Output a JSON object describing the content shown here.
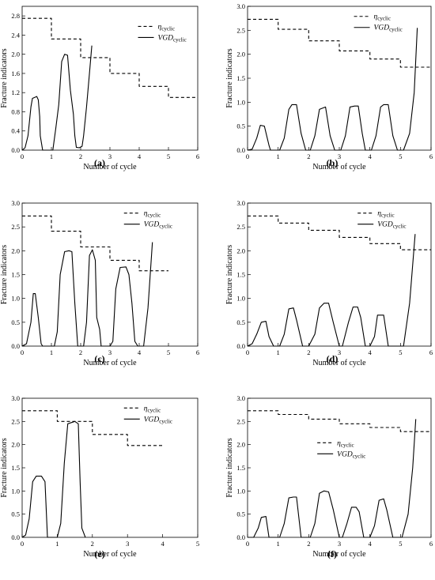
{
  "charts": [
    {
      "caption": "(a)",
      "xlabel": "Number of cycle",
      "ylabel": "Fracture indicators",
      "x_ticks": [
        "0",
        "1",
        "2",
        "3",
        "4",
        "5",
        "6"
      ],
      "y_ticks": [
        "0.0",
        "0.4",
        "0.8",
        "1.2",
        "1.6",
        "2.0",
        "2.4",
        "2.8"
      ],
      "legend_series_1": {
        "base": "η",
        "sub": "cyclic"
      },
      "legend_series_2": {
        "base": "VGD",
        "sub": "cyclic"
      }
    },
    {
      "caption": "(b)",
      "xlabel": "Number of cycle",
      "ylabel": "Fracture indicators",
      "x_ticks": [
        "0",
        "1",
        "2",
        "3",
        "4",
        "5",
        "6"
      ],
      "y_ticks": [
        "0.0",
        "0.5",
        "1.0",
        "1.5",
        "2.0",
        "2.5",
        "3.0"
      ],
      "legend_series_1": {
        "base": "η",
        "sub": "cyclic"
      },
      "legend_series_2": {
        "base": "VGD",
        "sub": "cyclic"
      }
    },
    {
      "caption": "(c)",
      "xlabel": "Number of cycle",
      "ylabel": "Fracture indicators",
      "x_ticks": [
        "0",
        "1",
        "2",
        "3",
        "4",
        "5",
        "6"
      ],
      "y_ticks": [
        "0.0",
        "0.5",
        "1.0",
        "1.5",
        "2.0",
        "2.5",
        "3.0"
      ],
      "legend_series_1": {
        "base": "η",
        "sub": "cyclic"
      },
      "legend_series_2": {
        "base": "VGD",
        "sub": "cyclic"
      }
    },
    {
      "caption": "(d)",
      "xlabel": "Number of cycle",
      "ylabel": "Fracture indicators",
      "x_ticks": [
        "0",
        "1",
        "2",
        "3",
        "4",
        "5",
        "6"
      ],
      "y_ticks": [
        "0.0",
        "0.5",
        "1.0",
        "1.5",
        "2.0",
        "2.5",
        "3.0"
      ],
      "legend_series_1": {
        "base": "η",
        "sub": "cyclic"
      },
      "legend_series_2": {
        "base": "VGD",
        "sub": "cyclic"
      }
    },
    {
      "caption": "(e)",
      "xlabel": "Number of cycle",
      "ylabel": "Fracture indicators",
      "x_ticks": [
        "0",
        "1",
        "2",
        "3",
        "4",
        "5"
      ],
      "y_ticks": [
        "0.0",
        "0.5",
        "1.0",
        "1.5",
        "2.0",
        "2.5",
        "3.0"
      ],
      "legend_series_1": {
        "base": "η",
        "sub": "cyclic"
      },
      "legend_series_2": {
        "base": "VGD",
        "sub": "cyclic"
      }
    },
    {
      "caption": "(f)",
      "xlabel": "Number of cycle",
      "ylabel": "Fracture indicators",
      "x_ticks": [
        "0",
        "1",
        "2",
        "3",
        "4",
        "5",
        "6"
      ],
      "y_ticks": [
        "0.0",
        "0.5",
        "1.0",
        "1.5",
        "2.0",
        "2.5",
        "3.0"
      ],
      "legend_series_1": {
        "base": "η",
        "sub": "cyclic"
      },
      "legend_series_2": {
        "base": "VGD",
        "sub": "cyclic"
      }
    }
  ],
  "chart_data": [
    {
      "type": "line",
      "xlim": [
        0,
        6
      ],
      "ylim": [
        0,
        3.0
      ],
      "grid": false,
      "legend_placement": "top-right",
      "series": [
        {
          "name": "ηcyclic",
          "style": "dashed",
          "x": [
            0,
            1,
            1,
            2,
            2,
            3,
            3,
            4,
            4,
            5,
            5,
            6
          ],
          "y": [
            2.75,
            2.75,
            2.32,
            2.32,
            1.93,
            1.93,
            1.6,
            1.6,
            1.33,
            1.33,
            1.1,
            1.1
          ]
        },
        {
          "name": "VGDcyclic",
          "style": "solid",
          "x": [
            0,
            0.1,
            0.2,
            0.3,
            0.35,
            0.5,
            0.55,
            0.6,
            0.62,
            0.7,
            0.72,
            0.8,
            0.9,
            1.0,
            1.05,
            1.15,
            1.25,
            1.35,
            1.45,
            1.55,
            1.65,
            1.75,
            1.8,
            1.85,
            1.95,
            2.05,
            2.1,
            2.2,
            2.3,
            2.38
          ],
          "y": [
            0.0,
            0.05,
            0.3,
            0.9,
            1.08,
            1.12,
            1.05,
            0.7,
            0.3,
            0.0,
            0.0,
            0.0,
            0.0,
            0.0,
            0.0,
            0.45,
            0.95,
            1.85,
            2.0,
            1.98,
            1.25,
            0.75,
            0.3,
            0.06,
            0.05,
            0.08,
            0.3,
            0.9,
            1.6,
            2.18
          ]
        }
      ]
    },
    {
      "type": "line",
      "xlim": [
        0,
        6
      ],
      "ylim": [
        0,
        3.0
      ],
      "grid": false,
      "legend_placement": "top-right",
      "series": [
        {
          "name": "ηcyclic",
          "style": "dashed",
          "x": [
            0,
            1,
            1,
            2,
            2,
            3,
            3,
            4,
            4,
            5,
            5,
            6
          ],
          "y": [
            2.73,
            2.73,
            2.52,
            2.52,
            2.28,
            2.28,
            2.07,
            2.07,
            1.9,
            1.9,
            1.73,
            1.73
          ]
        },
        {
          "name": "VGDcyclic",
          "style": "solid",
          "x": [
            0,
            0.15,
            0.3,
            0.42,
            0.55,
            0.7,
            0.75,
            0.9,
            1.05,
            1.2,
            1.35,
            1.45,
            1.6,
            1.75,
            1.9,
            2.05,
            2.2,
            2.35,
            2.55,
            2.7,
            2.85,
            2.95,
            3.05,
            3.2,
            3.35,
            3.5,
            3.62,
            3.75,
            3.85,
            3.95,
            4.05,
            4.2,
            4.35,
            4.45,
            4.6,
            4.75,
            4.9,
            5.1,
            5.3,
            5.45,
            5.55
          ],
          "y": [
            0.0,
            0.02,
            0.25,
            0.52,
            0.5,
            0.1,
            0.0,
            0.0,
            0.0,
            0.25,
            0.85,
            0.95,
            0.95,
            0.35,
            0.0,
            0.0,
            0.3,
            0.85,
            0.9,
            0.3,
            0.0,
            0.0,
            0.0,
            0.3,
            0.9,
            0.92,
            0.92,
            0.35,
            0.0,
            0.0,
            0.0,
            0.3,
            0.9,
            0.95,
            0.95,
            0.3,
            0.0,
            0.0,
            0.35,
            1.2,
            2.55
          ]
        }
      ]
    },
    {
      "type": "line",
      "xlim": [
        0,
        6
      ],
      "ylim": [
        0,
        3.0
      ],
      "grid": false,
      "legend_placement": "top-right",
      "series": [
        {
          "name": "ηcyclic",
          "style": "dashed",
          "x": [
            0,
            1,
            1,
            2,
            2,
            3,
            3,
            4,
            4,
            5
          ],
          "y": [
            2.73,
            2.73,
            2.41,
            2.41,
            2.08,
            2.08,
            1.8,
            1.8,
            1.58,
            1.58
          ]
        },
        {
          "name": "VGDcyclic",
          "style": "solid",
          "x": [
            0,
            0.15,
            0.3,
            0.38,
            0.45,
            0.55,
            0.65,
            0.7,
            0.8,
            0.9,
            1.0,
            1.1,
            1.2,
            1.3,
            1.45,
            1.6,
            1.7,
            1.8,
            1.9,
            2.0,
            2.1,
            2.2,
            2.3,
            2.4,
            2.5,
            2.55,
            2.65,
            2.7,
            2.85,
            3.0,
            3.1,
            3.2,
            3.35,
            3.55,
            3.65,
            3.75,
            3.85,
            3.95,
            4.05,
            4.15,
            4.3,
            4.45
          ],
          "y": [
            0.0,
            0.05,
            0.5,
            1.1,
            1.1,
            0.6,
            0.05,
            0.0,
            0.0,
            0.0,
            0.0,
            0.0,
            0.3,
            1.5,
            1.98,
            2.0,
            1.98,
            0.9,
            0.0,
            0.0,
            0.0,
            0.5,
            1.9,
            2.02,
            1.8,
            0.6,
            0.35,
            0.0,
            0.0,
            0.0,
            0.1,
            1.2,
            1.65,
            1.66,
            1.5,
            0.9,
            0.1,
            0.0,
            0.0,
            0.0,
            0.8,
            2.18
          ]
        }
      ]
    },
    {
      "type": "line",
      "xlim": [
        0,
        6
      ],
      "ylim": [
        0,
        3.0
      ],
      "grid": false,
      "legend_placement": "top-right",
      "series": [
        {
          "name": "ηcyclic",
          "style": "dashed",
          "x": [
            0,
            1,
            1,
            2,
            2,
            3,
            3,
            4,
            4,
            5,
            5,
            6
          ],
          "y": [
            2.73,
            2.73,
            2.58,
            2.58,
            2.43,
            2.43,
            2.28,
            2.28,
            2.15,
            2.15,
            2.02,
            2.02
          ]
        },
        {
          "name": "VGDcyclic",
          "style": "solid",
          "x": [
            0,
            0.15,
            0.3,
            0.45,
            0.6,
            0.7,
            0.85,
            1.05,
            1.2,
            1.35,
            1.5,
            1.6,
            1.8,
            2.0,
            2.2,
            2.35,
            2.5,
            2.65,
            2.8,
            3.0,
            3.1,
            3.3,
            3.45,
            3.6,
            3.7,
            3.85,
            4.0,
            4.15,
            4.25,
            4.45,
            4.6,
            4.8,
            5.1,
            5.3,
            5.48
          ],
          "y": [
            0.0,
            0.05,
            0.25,
            0.5,
            0.52,
            0.2,
            0.0,
            0.0,
            0.25,
            0.78,
            0.8,
            0.55,
            0.0,
            0.0,
            0.25,
            0.8,
            0.9,
            0.9,
            0.5,
            0.0,
            0.0,
            0.5,
            0.82,
            0.82,
            0.6,
            0.0,
            0.0,
            0.2,
            0.65,
            0.65,
            0.0,
            0.0,
            0.0,
            0.9,
            2.35
          ]
        }
      ]
    },
    {
      "type": "line",
      "xlim": [
        0,
        5
      ],
      "ylim": [
        0,
        3.0
      ],
      "grid": false,
      "legend_placement": "top-right",
      "series": [
        {
          "name": "ηcyclic",
          "style": "dashed",
          "x": [
            0,
            1,
            1,
            2,
            2,
            3,
            3,
            4
          ],
          "y": [
            2.73,
            2.73,
            2.5,
            2.5,
            2.22,
            2.22,
            1.98,
            1.98
          ]
        },
        {
          "name": "VGDcyclic",
          "style": "solid",
          "x": [
            0,
            0.1,
            0.2,
            0.3,
            0.4,
            0.55,
            0.65,
            0.72,
            0.8,
            0.9,
            1.0,
            1.1,
            1.2,
            1.3,
            1.5,
            1.6,
            1.65,
            1.7,
            1.8
          ],
          "y": [
            0.0,
            0.05,
            0.4,
            1.2,
            1.32,
            1.32,
            1.2,
            0.0,
            0.0,
            0.0,
            0.0,
            0.3,
            1.6,
            2.45,
            2.5,
            2.45,
            1.2,
            0.2,
            0.0
          ]
        }
      ]
    },
    {
      "type": "line",
      "xlim": [
        0,
        6
      ],
      "ylim": [
        0,
        3.0
      ],
      "grid": false,
      "legend_placement": "center-left",
      "series": [
        {
          "name": "ηcyclic",
          "style": "dashed",
          "x": [
            0,
            1,
            1,
            2,
            2,
            3,
            3,
            4,
            4,
            5,
            5,
            6
          ],
          "y": [
            2.73,
            2.73,
            2.65,
            2.65,
            2.55,
            2.55,
            2.45,
            2.45,
            2.37,
            2.37,
            2.28,
            2.28
          ]
        },
        {
          "name": "VGDcyclic",
          "style": "solid",
          "x": [
            0,
            0.2,
            0.35,
            0.45,
            0.6,
            0.7,
            0.85,
            1.05,
            1.2,
            1.35,
            1.5,
            1.6,
            1.75,
            2.05,
            2.2,
            2.35,
            2.5,
            2.65,
            2.8,
            3.0,
            3.1,
            3.25,
            3.4,
            3.55,
            3.65,
            3.8,
            4.0,
            4.15,
            4.3,
            4.45,
            4.55,
            4.75,
            5.05,
            5.25,
            5.4,
            5.5
          ],
          "y": [
            0.0,
            0.0,
            0.2,
            0.43,
            0.45,
            0.0,
            0.0,
            0.0,
            0.3,
            0.85,
            0.87,
            0.87,
            0.0,
            0.0,
            0.3,
            0.95,
            1.0,
            0.98,
            0.6,
            0.0,
            0.0,
            0.3,
            0.65,
            0.65,
            0.55,
            0.0,
            0.0,
            0.25,
            0.8,
            0.83,
            0.6,
            0.0,
            0.0,
            0.5,
            1.5,
            2.55
          ]
        }
      ]
    }
  ]
}
